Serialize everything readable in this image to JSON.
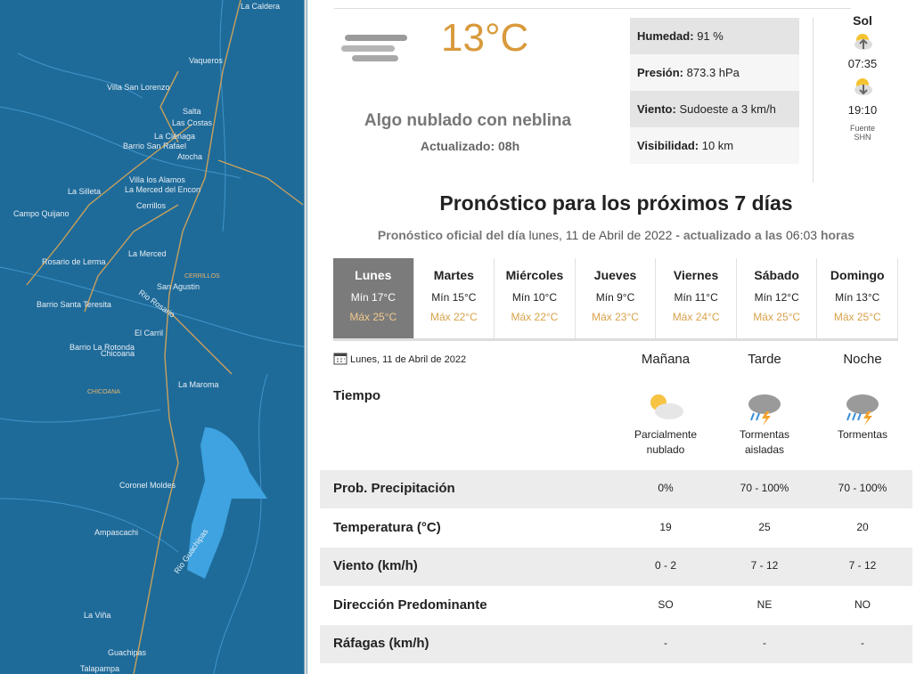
{
  "map": {
    "places": [
      "La Caldera",
      "Vaqueros",
      "Villa San Lorenzo",
      "Salta",
      "Las Costas",
      "La Ciénaga",
      "Barrio San Rafael",
      "Atocha",
      "Villa los Alamos",
      "La Merced del Encon",
      "La Silleta",
      "Campo Quijano",
      "Cerrillos",
      "La Merced",
      "Rosario de Lerma",
      "CERRILLOS",
      "San Agustin",
      "Rio Rosario",
      "Barrio Santa Teresita",
      "El Carril",
      "Barrio La Rotonda",
      "Chicoana",
      "CHICOANA",
      "La Maroma",
      "Coronel Moldes",
      "Ampascachi",
      "Rio Guachipas",
      "La Viña",
      "Guachipas",
      "Talapampa"
    ]
  },
  "current": {
    "temperature": "13°C",
    "description": "Algo nublado con neblina",
    "updated": "Actualizado: 08h",
    "details": [
      {
        "label": "Humedad:",
        "value": "91 %"
      },
      {
        "label": "Presión:",
        "value": "873.3 hPa"
      },
      {
        "label": "Viento:",
        "value": "Sudoeste a 3 km/h"
      },
      {
        "label": "Visibilidad:",
        "value": "10 km"
      }
    ],
    "sun": {
      "title": "Sol",
      "sunrise": "07:35",
      "sunset": "19:10",
      "source": "Fuente",
      "source_name": "SHN"
    }
  },
  "forecast": {
    "title": "Pronóstico para los próximos 7 días",
    "subtitle": [
      {
        "text": "Pronóstico oficial del día",
        "bold": true
      },
      {
        "text": "lunes, 11 de Abril de 2022",
        "bold": false
      },
      {
        "text": "- actualizado a las",
        "bold": true
      },
      {
        "text": "06:03",
        "bold": false
      },
      {
        "text": "horas",
        "bold": true
      }
    ],
    "days": [
      {
        "name": "Lunes",
        "min": "Mín 17°C",
        "max": "Máx 25°C",
        "active": true
      },
      {
        "name": "Martes",
        "min": "Mín 15°C",
        "max": "Máx 22°C",
        "active": false
      },
      {
        "name": "Miércoles",
        "min": "Mín 10°C",
        "max": "Máx 22°C",
        "active": false
      },
      {
        "name": "Jueves",
        "min": "Mín 9°C",
        "max": "Máx 23°C",
        "active": false
      },
      {
        "name": "Viernes",
        "min": "Mín 11°C",
        "max": "Máx 24°C",
        "active": false
      },
      {
        "name": "Sábado",
        "min": "Mín 12°C",
        "max": "Máx 25°C",
        "active": false
      },
      {
        "name": "Domingo",
        "min": "Mín 13°C",
        "max": "Máx 25°C",
        "active": false
      }
    ],
    "date": "Lunes, 11 de Abril de 2022",
    "periods": [
      "Mañana",
      "Tarde",
      "Noche"
    ],
    "weather_label": "Tiempo",
    "weather": [
      "Parcialmente nublado",
      "Tormentas aisladas",
      "Tormentas"
    ],
    "rows": [
      {
        "label": "Prob. Precipitación",
        "values": [
          "0%",
          "70 - 100%",
          "70 - 100%"
        ]
      },
      {
        "label": "Temperatura (°C)",
        "values": [
          "19",
          "25",
          "20"
        ]
      },
      {
        "label": "Viento (km/h)",
        "values": [
          "0 - 2",
          "7 - 12",
          "7 - 12"
        ]
      },
      {
        "label": "Dirección Predominante",
        "values": [
          "SO",
          "NE",
          "NO"
        ]
      },
      {
        "label": "Ráfagas (km/h)",
        "values": [
          "-",
          "-",
          "-"
        ]
      }
    ]
  }
}
